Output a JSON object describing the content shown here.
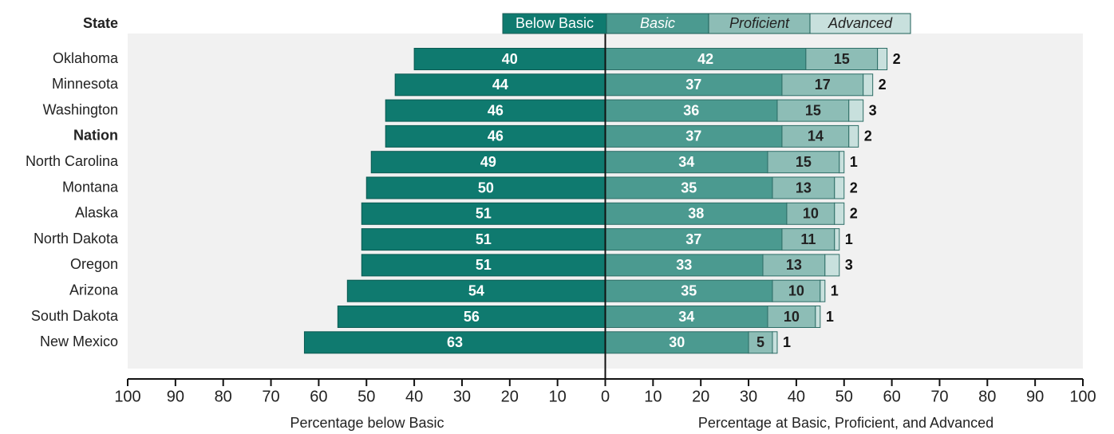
{
  "chart_data": {
    "type": "diverging_bar",
    "category_header": "State",
    "categories": [
      "Oklahoma",
      "Minnesota",
      "Washington",
      "Nation",
      "North Carolina",
      "Montana",
      "Alaska",
      "North Dakota",
      "Oregon",
      "Arizona",
      "South Dakota",
      "New Mexico"
    ],
    "highlight_index": 3,
    "series": [
      {
        "name": "Below Basic",
        "color": "#0f7a6f",
        "values": [
          40,
          44,
          46,
          46,
          49,
          50,
          51,
          51,
          51,
          54,
          56,
          63
        ]
      },
      {
        "name": "Basic",
        "color": "#4b9a90",
        "values": [
          42,
          37,
          36,
          37,
          34,
          35,
          38,
          37,
          33,
          35,
          34,
          30
        ]
      },
      {
        "name": "Proficient",
        "color": "#8dbdb6",
        "values": [
          15,
          17,
          15,
          14,
          15,
          13,
          10,
          11,
          13,
          10,
          10,
          5
        ]
      },
      {
        "name": "Advanced",
        "color": "#c8e0dd",
        "values": [
          2,
          2,
          3,
          2,
          1,
          2,
          2,
          1,
          3,
          1,
          1,
          1
        ]
      }
    ],
    "xlim": [
      -100,
      100
    ],
    "xticks": [
      {
        "value": -100,
        "label": "100"
      },
      {
        "value": -90,
        "label": "90"
      },
      {
        "value": -80,
        "label": "80"
      },
      {
        "value": -70,
        "label": "70"
      },
      {
        "value": -60,
        "label": "60"
      },
      {
        "value": -50,
        "label": "50"
      },
      {
        "value": -40,
        "label": "40"
      },
      {
        "value": -30,
        "label": "30"
      },
      {
        "value": -20,
        "label": "20"
      },
      {
        "value": -10,
        "label": "10"
      },
      0,
      10,
      20,
      30,
      40,
      50,
      60,
      70,
      80,
      90,
      100
    ],
    "xlabel_left": "Percentage below Basic",
    "xlabel_right": "Percentage at Basic, Proficient, and Advanced"
  }
}
